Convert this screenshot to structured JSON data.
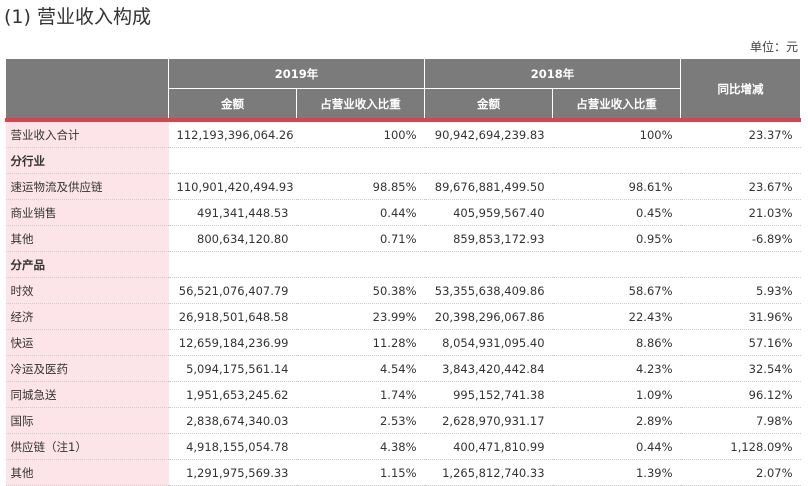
{
  "header": {
    "title": "(1) 营业收入构成",
    "unit": "单位：元"
  },
  "table": {
    "years": [
      "2019年",
      "2018年"
    ],
    "subheaders": [
      "金额",
      "占营业收入比重",
      "金额",
      "占营业收入比重"
    ],
    "change_header": "同比增减",
    "rows": [
      [
        "营业收入合计",
        "112,193,396,064.26",
        "100%",
        "90,942,694,239.83",
        "100%",
        "23.37%"
      ],
      [
        "分行业"
      ],
      [
        "速运物流及供应链",
        "110,901,420,494.93",
        "98.85%",
        "89,676,881,499.50",
        "98.61%",
        "23.67%"
      ],
      [
        "商业销售",
        "491,341,448.53",
        "0.44%",
        "405,959,567.40",
        "0.45%",
        "21.03%"
      ],
      [
        "其他",
        "800,634,120.80",
        "0.71%",
        "859,853,172.93",
        "0.95%",
        "-6.89%"
      ],
      [
        "分产品"
      ],
      [
        "时效",
        "56,521,076,407.79",
        "50.38%",
        "53,355,638,409.86",
        "58.67%",
        "5.93%"
      ],
      [
        "经济",
        "26,918,501,648.58",
        "23.99%",
        "20,398,296,067.86",
        "22.43%",
        "31.96%"
      ],
      [
        "快运",
        "12,659,184,236.99",
        "11.28%",
        "8,054,931,095.40",
        "8.86%",
        "57.16%"
      ],
      [
        "冷运及医药",
        "5,094,175,561.14",
        "4.54%",
        "3,843,420,442.84",
        "4.23%",
        "32.54%"
      ],
      [
        "同城急送",
        "1,951,653,245.62",
        "1.74%",
        "995,152,741.38",
        "1.09%",
        "96.12%"
      ],
      [
        "国际",
        "2,838,674,340.03",
        "2.53%",
        "2,628,970,931.17",
        "2.89%",
        "7.98%"
      ],
      [
        "供应链（注1）",
        "4,918,155,054.78",
        "4.38%",
        "400,471,810.99",
        "0.44%",
        "1,128.09%"
      ],
      [
        "其他",
        "1,291,975,569.33",
        "1.15%",
        "1,265,812,740.33",
        "1.39%",
        "2.07%"
      ]
    ]
  }
}
